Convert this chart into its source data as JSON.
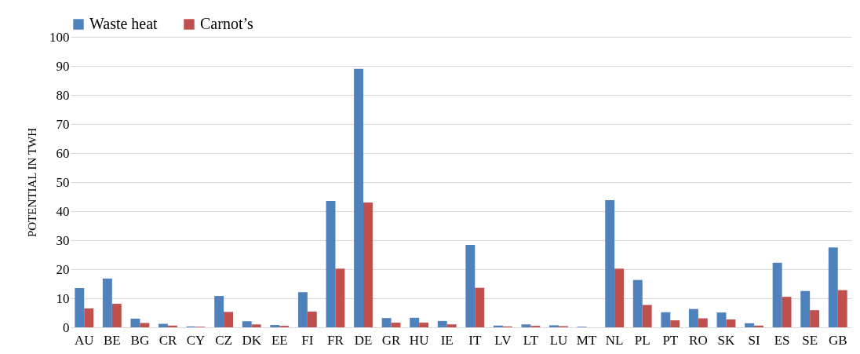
{
  "chart_data": {
    "type": "bar",
    "ylabel": "POTENTIAL IN TWH",
    "categories": [
      "AU",
      "BE",
      "BG",
      "CR",
      "CY",
      "CZ",
      "DK",
      "EE",
      "FI",
      "FR",
      "DE",
      "GR",
      "HU",
      "IE",
      "IT",
      "LV",
      "LT",
      "LU",
      "MT",
      "NL",
      "PL",
      "PT",
      "RO",
      "SK",
      "SI",
      "ES",
      "SE",
      "GB"
    ],
    "series": [
      {
        "name": "Waste heat",
        "color": "#4f81bd",
        "values": [
          13.5,
          16.8,
          3.0,
          1.2,
          0.3,
          10.8,
          2.1,
          0.8,
          12.1,
          43.5,
          89.0,
          3.2,
          3.3,
          2.2,
          28.4,
          0.6,
          1.0,
          0.7,
          0.2,
          43.8,
          16.3,
          5.2,
          6.3,
          5.1,
          1.4,
          22.2,
          12.5,
          27.5
        ]
      },
      {
        "name": "Carnot’s",
        "color": "#c0504d",
        "values": [
          6.5,
          8.1,
          1.5,
          0.6,
          0.2,
          5.3,
          1.0,
          0.5,
          5.4,
          20.2,
          43.0,
          1.6,
          1.6,
          1.0,
          13.6,
          0.3,
          0.5,
          0.4,
          null,
          20.2,
          7.7,
          2.4,
          3.1,
          2.7,
          0.6,
          10.5,
          5.9,
          12.8
        ]
      }
    ],
    "ylim": [
      0,
      100
    ],
    "yticks": [
      0,
      10,
      20,
      30,
      40,
      50,
      60,
      70,
      80,
      90,
      100
    ],
    "grid": "y",
    "legend": "top"
  }
}
